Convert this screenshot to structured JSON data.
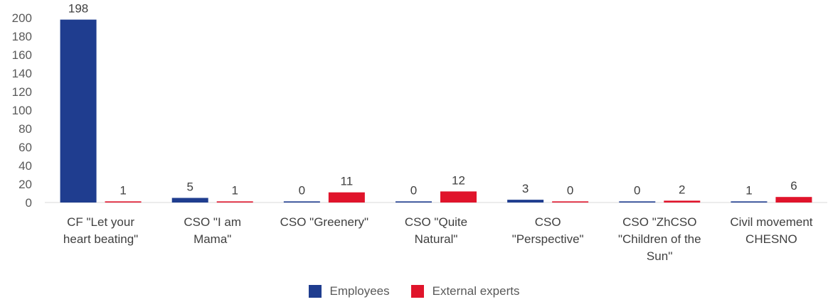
{
  "chart_data": {
    "type": "bar",
    "categories": [
      [
        "CF \"Let your",
        "heart beating\""
      ],
      [
        "CSO \"I am",
        "Mama\""
      ],
      [
        "CSO \"Greenery\""
      ],
      [
        "CSO \"Quite",
        "Natural\""
      ],
      [
        "CSO",
        "\"Perspective\""
      ],
      [
        "CSO \"ZhCSO",
        "\"Children of the",
        "Sun''"
      ],
      [
        "Civil movement",
        "CHESNO"
      ]
    ],
    "series": [
      {
        "name": "Employees",
        "color": "#1f3d8f",
        "values": [
          198,
          5,
          0,
          0,
          3,
          0,
          1
        ]
      },
      {
        "name": "External experts",
        "color": "#e0142b",
        "values": [
          1,
          1,
          11,
          12,
          0,
          2,
          6
        ]
      }
    ],
    "yticks": [
      0,
      20,
      40,
      60,
      80,
      100,
      120,
      140,
      160,
      180,
      200
    ],
    "ylim": [
      0,
      200
    ],
    "title": "",
    "xlabel": "",
    "ylabel": "",
    "grid": false,
    "legend_position": "bottom"
  }
}
